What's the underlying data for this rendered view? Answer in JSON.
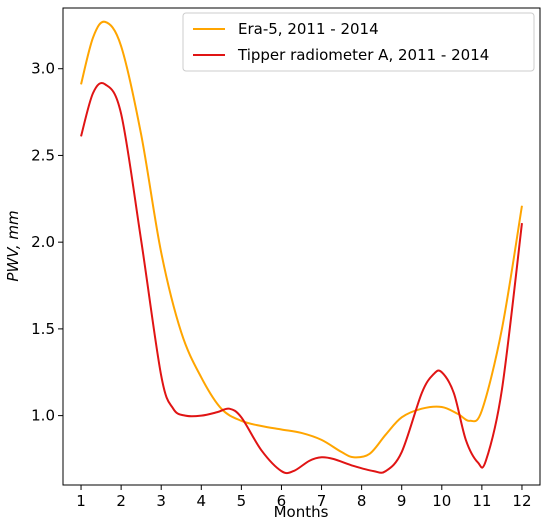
{
  "chart_data": {
    "type": "line",
    "xlabel": "Months",
    "ylabel": "PWV, mm",
    "xlim": [
      0.55,
      12.45
    ],
    "ylim": [
      0.6,
      3.35
    ],
    "xticks": [
      1,
      2,
      3,
      4,
      5,
      6,
      7,
      8,
      9,
      10,
      11,
      12
    ],
    "xtick_labels": [
      "1",
      "2",
      "3",
      "4",
      "5",
      "6",
      "7",
      "8",
      "9",
      "10",
      "11",
      "12"
    ],
    "yticks": [
      1.0,
      1.5,
      2.0,
      2.5,
      3.0
    ],
    "ytick_labels": [
      "1.0",
      "1.5",
      "2.0",
      "2.5",
      "3.0"
    ],
    "grid": false,
    "legend_position": "top-right",
    "series": [
      {
        "name": "Era-5, 2011 - 2014",
        "color": "#ffa500",
        "x": [
          1,
          1.3,
          1.6,
          2,
          2.5,
          3,
          3.5,
          4,
          4.5,
          5,
          5.5,
          6,
          6.5,
          7,
          7.5,
          7.8,
          8.2,
          8.6,
          9,
          9.5,
          10,
          10.4,
          10.7,
          11,
          11.5,
          12
        ],
        "y": [
          2.91,
          3.18,
          3.27,
          3.13,
          2.62,
          1.94,
          1.48,
          1.22,
          1.04,
          0.97,
          0.94,
          0.92,
          0.9,
          0.86,
          0.79,
          0.76,
          0.78,
          0.89,
          0.99,
          1.04,
          1.05,
          1.01,
          0.97,
          1.03,
          1.5,
          2.21
        ]
      },
      {
        "name": "Tipper radiometer A, 2011 - 2014",
        "color": "#e01414",
        "x": [
          1,
          1.3,
          1.6,
          2,
          2.5,
          3,
          3.3,
          3.6,
          4,
          4.4,
          4.7,
          5,
          5.5,
          6,
          6.3,
          6.7,
          7,
          7.3,
          7.8,
          8.3,
          8.6,
          9,
          9.5,
          9.8,
          10,
          10.3,
          10.6,
          10.9,
          11.1,
          11.5,
          12
        ],
        "y": [
          2.61,
          2.86,
          2.91,
          2.74,
          2.01,
          1.23,
          1.04,
          1.0,
          1.0,
          1.02,
          1.04,
          0.99,
          0.8,
          0.68,
          0.68,
          0.74,
          0.76,
          0.75,
          0.71,
          0.68,
          0.68,
          0.79,
          1.13,
          1.24,
          1.25,
          1.13,
          0.86,
          0.73,
          0.74,
          1.15,
          2.11
        ]
      }
    ]
  }
}
